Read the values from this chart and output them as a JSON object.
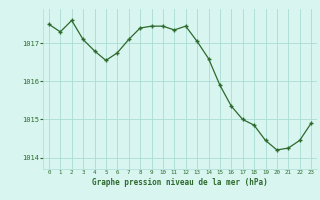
{
  "hours": [
    0,
    1,
    2,
    3,
    4,
    5,
    6,
    7,
    8,
    9,
    10,
    11,
    12,
    13,
    14,
    15,
    16,
    17,
    18,
    19,
    20,
    21,
    22,
    23
  ],
  "pressure": [
    1017.5,
    1017.3,
    1017.6,
    1017.1,
    1016.8,
    1016.55,
    1016.75,
    1017.1,
    1017.4,
    1017.45,
    1017.45,
    1017.35,
    1017.45,
    1017.05,
    1016.6,
    1015.9,
    1015.35,
    1015.0,
    1014.85,
    1014.45,
    1014.2,
    1014.25,
    1014.45,
    1014.9
  ],
  "line_color": "#2d6a2d",
  "marker_color": "#2d6a2d",
  "bg_color": "#d8f5f0",
  "grid_color": "#aaddd5",
  "xlabel": "Graphe pression niveau de la mer (hPa)",
  "xlabel_color": "#2d6a2d",
  "tick_color": "#2d6a2d",
  "yticks": [
    1014,
    1015,
    1016,
    1017
  ],
  "ylim": [
    1013.7,
    1017.9
  ],
  "xlim": [
    -0.5,
    23.5
  ],
  "xticks": [
    0,
    1,
    2,
    3,
    4,
    5,
    6,
    7,
    8,
    9,
    10,
    11,
    12,
    13,
    14,
    15,
    16,
    17,
    18,
    19,
    20,
    21,
    22,
    23
  ]
}
